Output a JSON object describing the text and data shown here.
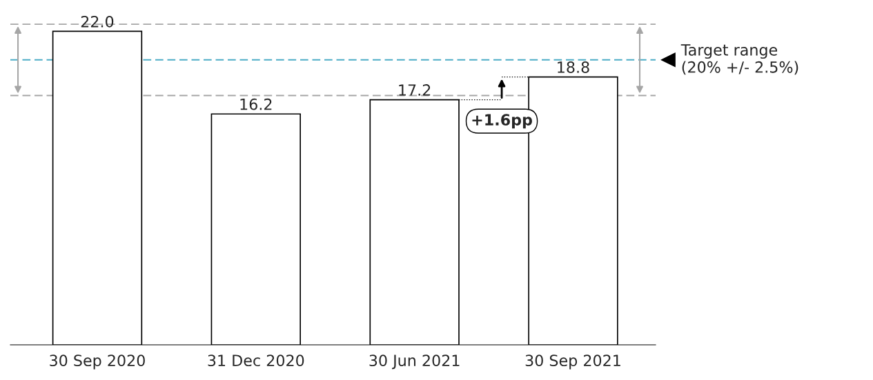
{
  "chart_data": {
    "type": "bar",
    "categories": [
      "30 Sep 2020",
      "31 Dec 2020",
      "30 Jun 2021",
      "30 Sep 2021"
    ],
    "values": [
      22.0,
      16.2,
      17.2,
      18.8
    ],
    "value_labels": [
      "22.0",
      "16.2",
      "17.2",
      "18.8"
    ],
    "color": "#ffffff",
    "tick_labels": "x",
    "ref_lines": [
      {
        "axis": "y",
        "value": 22.5,
        "color": "#a6a6a6",
        "line_style": "dashed"
      },
      {
        "axis": "y",
        "value": 20,
        "color": "#4bacc6",
        "line_style": "dashed",
        "label": "Target range\n(20% +/- 2.5%)"
      },
      {
        "axis": "y",
        "value": 17.5,
        "color": "#a6a6a6",
        "line_style": "dashed"
      }
    ],
    "annotations": [
      "+1.6pp"
    ]
  }
}
